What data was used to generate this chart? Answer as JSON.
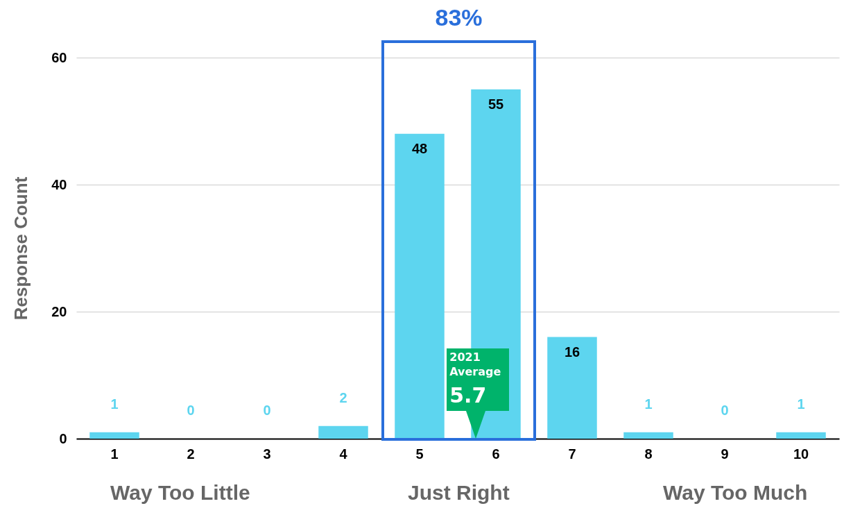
{
  "chart_data": {
    "type": "bar",
    "ylabel": "Response Count",
    "categories": [
      "1",
      "2",
      "3",
      "4",
      "5",
      "6",
      "7",
      "8",
      "9",
      "10"
    ],
    "values": [
      1,
      0,
      0,
      2,
      48,
      55,
      16,
      1,
      0,
      1
    ],
    "color": "#5dd5ef",
    "ylim": [
      0,
      60
    ],
    "yticks": [
      0,
      20,
      40,
      60
    ],
    "grid": "y",
    "data_labels": true,
    "annotations": [
      "83%",
      "2021 Average",
      "5.7",
      "Way Too Little",
      "Just Right",
      "Way Too Much"
    ]
  }
}
